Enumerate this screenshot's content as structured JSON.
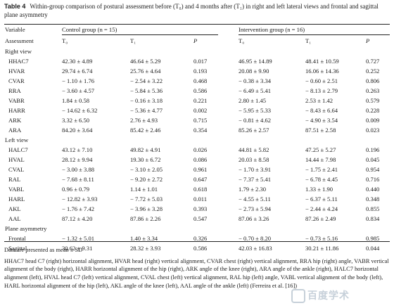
{
  "caption": {
    "label": "Table 4",
    "text": "Within-group comparison of postural assessment before (T₀) and 4 months after (T₁) in right and left lateral views and frontal and sagittal plane asymmetry"
  },
  "header": {
    "variable": "Variable",
    "control": "Control group (n = 15)",
    "intervention": "Intervention group (n = 16)",
    "assessment": "Assessment",
    "t0": "T₀",
    "t1": "T₁",
    "p": "P"
  },
  "sections": [
    {
      "title": "Right view",
      "rows": [
        [
          "HHAC7",
          "42.30 ± 4.89",
          "46.64 ± 5.29",
          "0.017",
          "46.95 ± 14.89",
          "48.41 ± 10.59",
          "0.727"
        ],
        [
          "HVAR",
          "29.74 ± 6.74",
          "25.76 ± 4.64",
          "0.193",
          "20.08 ± 9.90",
          "16.06 ± 14.36",
          "0.252"
        ],
        [
          "CVAR",
          "− 1.10 ± 1.76",
          "− 2.54 ± 3.22",
          "0.468",
          "− 0.38 ± 3.34",
          "− 0.60 ± 2.51",
          "0.806"
        ],
        [
          "RRA",
          "− 3.60 ± 4.57",
          "− 5.84 ± 5.36",
          "0.586",
          "− 6.49 ± 5.41",
          "− 8.13 ± 2.79",
          "0.263"
        ],
        [
          "VABR",
          "1.84 ± 0.58",
          "− 0.16 ± 3.18",
          "0.221",
          "2.80 ± 1.45",
          "2.53 ± 1.42",
          "0.579"
        ],
        [
          "HARR",
          "− 14.62 ± 6.32",
          "− 5.36 ± 4.77",
          "0.002",
          "− 5.95 ± 5.33",
          "− 8.43 ± 6.64",
          "0.228"
        ],
        [
          "ARK",
          "3.32 ± 6.50",
          "2.76 ± 4.93",
          "0.715",
          "− 0.81 ± 4.62",
          "− 4.90 ± 3.54",
          "0.009"
        ],
        [
          "ARA",
          "84.20 ± 3.64",
          "85.42 ± 2.46",
          "0.354",
          "85.26 ± 2.57",
          "87.51 ± 2.58",
          "0.023"
        ]
      ]
    },
    {
      "title": "Left view",
      "rows": [
        [
          "HALC7",
          "43.12 ± 7.10",
          "49.82 ± 4.91",
          "0.026",
          "44.81 ± 5.82",
          "47.25 ± 5.27",
          "0.196"
        ],
        [
          "HVAL",
          "28.12 ± 9.94",
          "19.30 ± 6.72",
          "0.086",
          "20.03 ± 8.58",
          "14.44 ± 7.98",
          "0.045"
        ],
        [
          "CVAL",
          "− 3.00 ± 3.88",
          "− 3.10 ± 2.05",
          "0.961",
          "− 1.70 ± 3.91",
          "− 1.75 ± 2.41",
          "0.954"
        ],
        [
          "RAL",
          "− 7.68 ± 8.11",
          "− 9.20 ± 2.72",
          "0.647",
          "− 7.37 ± 5.41",
          "− 6.78 ± 4.45",
          "0.716"
        ],
        [
          "VABL",
          "0.96 ± 0.79",
          "1.14 ± 1.01",
          "0.618",
          "1.79 ± 2.30",
          "1.33 ± 1.90",
          "0.440"
        ],
        [
          "HARL",
          "− 12.82 ± 3.93",
          "− 7.72 ± 5.03",
          "0.011",
          "− 4.55 ± 5.11",
          "− 6.37 ± 5.11",
          "0.348"
        ],
        [
          "AKL",
          "− 1.76 ± 7.42",
          "− 3.96 ± 3.28",
          "0.393",
          "− 2.73 ± 5.94",
          "− 2.44 ± 4.24",
          "0.855"
        ],
        [
          "AAL",
          "87.12 ± 4.20",
          "87.86 ± 2.26",
          "0.547",
          "87.06 ± 3.26",
          "87.26 ± 2.49",
          "0.834"
        ]
      ]
    },
    {
      "title": "Plane asymmetry",
      "rows": [
        [
          "Frontal",
          "− 1.32 ± 5.01",
          "1.40 ± 3.34",
          "0.326",
          "− 0.70 ± 8.20",
          "− 0.73 ± 5.16",
          "0.985"
        ],
        [
          "Sagittal",
          "30.62 ± 9.31",
          "28.32 ± 3.93",
          "0.586",
          "42.03 ± 16.83",
          "30.21 ± 11.86",
          "0.044"
        ]
      ]
    }
  ],
  "notes": {
    "summary": "Data are presented as mean ± SD",
    "abbreviations": "HHAC7 head C7 (right) horizontal alignment, HVAR head (right) vertical alignment, CVAR chest (right) vertical alignment, RRA hip (right) angle, VABR vertical alignment of the body (right), HARR horizontal alignment of the hip (right), ARK angle of the knee (right), ARA angle of the ankle (right), HALC7 horizontal alignment (left), HVAL head C7 (left) vertical alignment, CVAL chest (left) vertical alignment, RAL hip (left) angle, VABL vertical alignment of the body (left), HARL horizontal alignment of the hip (left), AKL angle of the knee (left), AAL angle of the ankle (left) (Ferreira et al. [16])"
  },
  "watermark": "百度学术"
}
